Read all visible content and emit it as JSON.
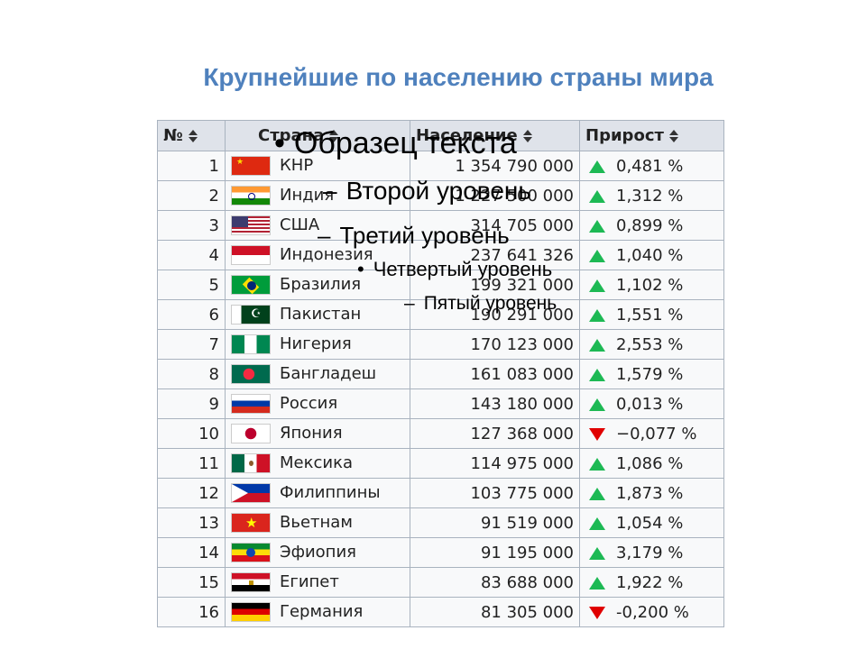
{
  "title": "Крупнейшие по населению страны мира",
  "table": {
    "headers": [
      "№",
      "Страна",
      "Население",
      "Прирост"
    ],
    "rows": [
      {
        "rank": "1",
        "country": "КНР",
        "flag": "flag-china-icon",
        "population": "1 354 790 000",
        "trend": "up",
        "growth": "0,481 %"
      },
      {
        "rank": "2",
        "country": "Индия",
        "flag": "flag-india-icon",
        "population": "1 227 500 000",
        "trend": "up",
        "growth": "1,312 %"
      },
      {
        "rank": "3",
        "country": "США",
        "flag": "flag-usa-icon",
        "population": "314 705 000",
        "trend": "up",
        "growth": "0,899 %"
      },
      {
        "rank": "4",
        "country": "Индонезия",
        "flag": "flag-indonesia-icon",
        "population": "237 641 326",
        "trend": "up",
        "growth": "1,040 %"
      },
      {
        "rank": "5",
        "country": "Бразилия",
        "flag": "flag-brazil-icon",
        "population": "199 321 000",
        "trend": "up",
        "growth": "1,102 %"
      },
      {
        "rank": "6",
        "country": "Пакистан",
        "flag": "flag-pakistan-icon",
        "population": "190 291 000",
        "trend": "up",
        "growth": "1,551 %"
      },
      {
        "rank": "7",
        "country": "Нигерия",
        "flag": "flag-nigeria-icon",
        "population": "170 123 000",
        "trend": "up",
        "growth": "2,553 %"
      },
      {
        "rank": "8",
        "country": "Бангладеш",
        "flag": "flag-bangladesh-icon",
        "population": "161 083 000",
        "trend": "up",
        "growth": "1,579 %"
      },
      {
        "rank": "9",
        "country": "Россия",
        "flag": "flag-russia-icon",
        "population": "143 180 000",
        "trend": "up",
        "growth": "0,013 %"
      },
      {
        "rank": "10",
        "country": "Япония",
        "flag": "flag-japan-icon",
        "population": "127 368 000",
        "trend": "down",
        "growth": "−0,077 %"
      },
      {
        "rank": "11",
        "country": "Мексика",
        "flag": "flag-mexico-icon",
        "population": "114 975 000",
        "trend": "up",
        "growth": "1,086 %"
      },
      {
        "rank": "12",
        "country": "Филиппины",
        "flag": "flag-philippines-icon",
        "population": "103 775 000",
        "trend": "up",
        "growth": "1,873 %"
      },
      {
        "rank": "13",
        "country": "Вьетнам",
        "flag": "flag-vietnam-icon",
        "population": "91 519 000",
        "trend": "up",
        "growth": "1,054 %"
      },
      {
        "rank": "14",
        "country": "Эфиопия",
        "flag": "flag-ethiopia-icon",
        "population": "91 195 000",
        "trend": "up",
        "growth": "3,179 %"
      },
      {
        "rank": "15",
        "country": "Египет",
        "flag": "flag-egypt-icon",
        "population": "83 688 000",
        "trend": "up",
        "growth": "1,922 %"
      },
      {
        "rank": "16",
        "country": "Германия",
        "flag": "flag-germany-icon",
        "population": "81 305 000",
        "trend": "down",
        "growth": "-0,200 %"
      }
    ]
  },
  "placeholder": {
    "level1": "Образец текста",
    "level2": "Второй уровень",
    "level3": "Третий уровень",
    "level4": "Четвертый уровень",
    "level5": "Пятый уровень"
  },
  "colors": {
    "title": "#4f81bd",
    "link": "#2a52be",
    "up": "#1db954",
    "down": "#e00000"
  }
}
